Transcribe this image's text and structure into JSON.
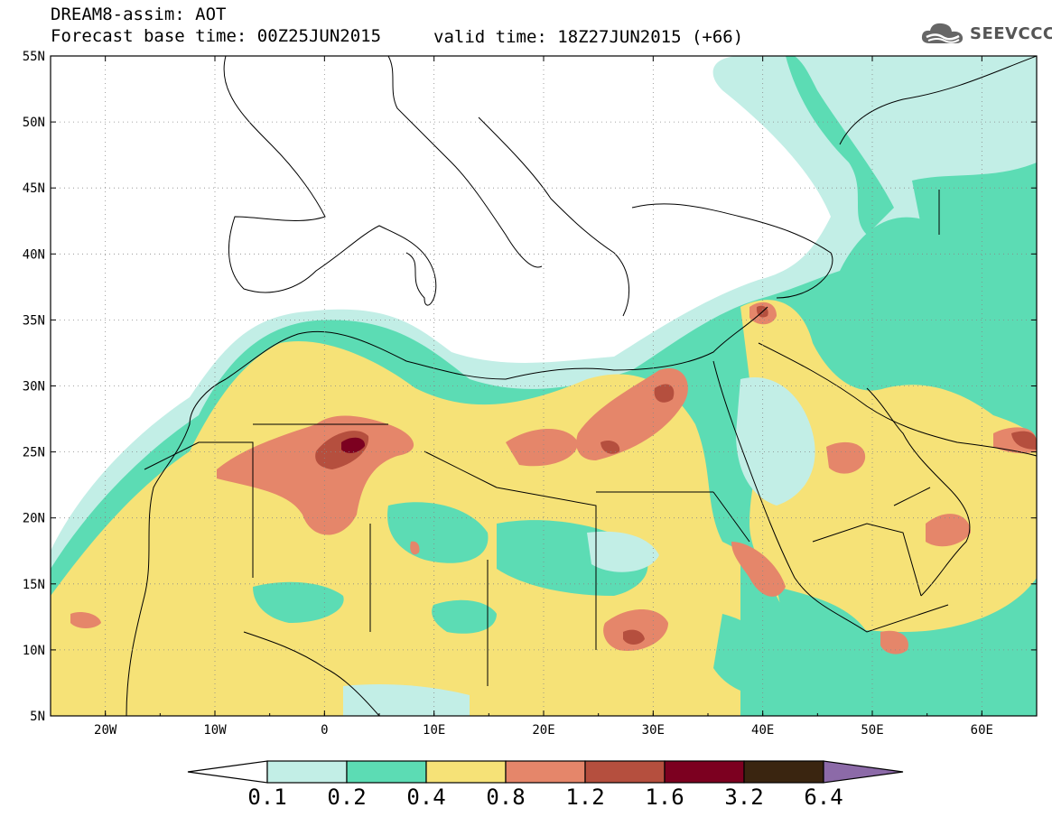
{
  "header": {
    "title": "DREAM8-assim: AOT",
    "base_time": "Forecast base time: 00Z25JUN2015",
    "valid_time": "valid time: 18Z27JUN2015 (+66)",
    "logo_text": "SEEVCCC",
    "logo_icon": "cloud-icon"
  },
  "map": {
    "lat_labels": [
      "55N",
      "50N",
      "45N",
      "40N",
      "35N",
      "30N",
      "25N",
      "20N",
      "15N",
      "10N",
      "5N"
    ],
    "lon_labels": [
      "20W",
      "10W",
      "0",
      "10E",
      "20E",
      "30E",
      "40E",
      "50E",
      "60E"
    ],
    "lat_range": [
      5,
      55
    ],
    "lon_range": [
      -25,
      65
    ],
    "grid": true
  },
  "colorbar": {
    "levels": [
      "0.1",
      "0.2",
      "0.4",
      "0.8",
      "1.2",
      "1.6",
      "3.2",
      "6.4"
    ],
    "colors": [
      "#c2eee6",
      "#5cdcb4",
      "#f6e277",
      "#e5866a",
      "#b54f3e",
      "#7c0020",
      "#3a2510",
      "#8c6aa8"
    ],
    "under_color": "#ffffff"
  }
}
